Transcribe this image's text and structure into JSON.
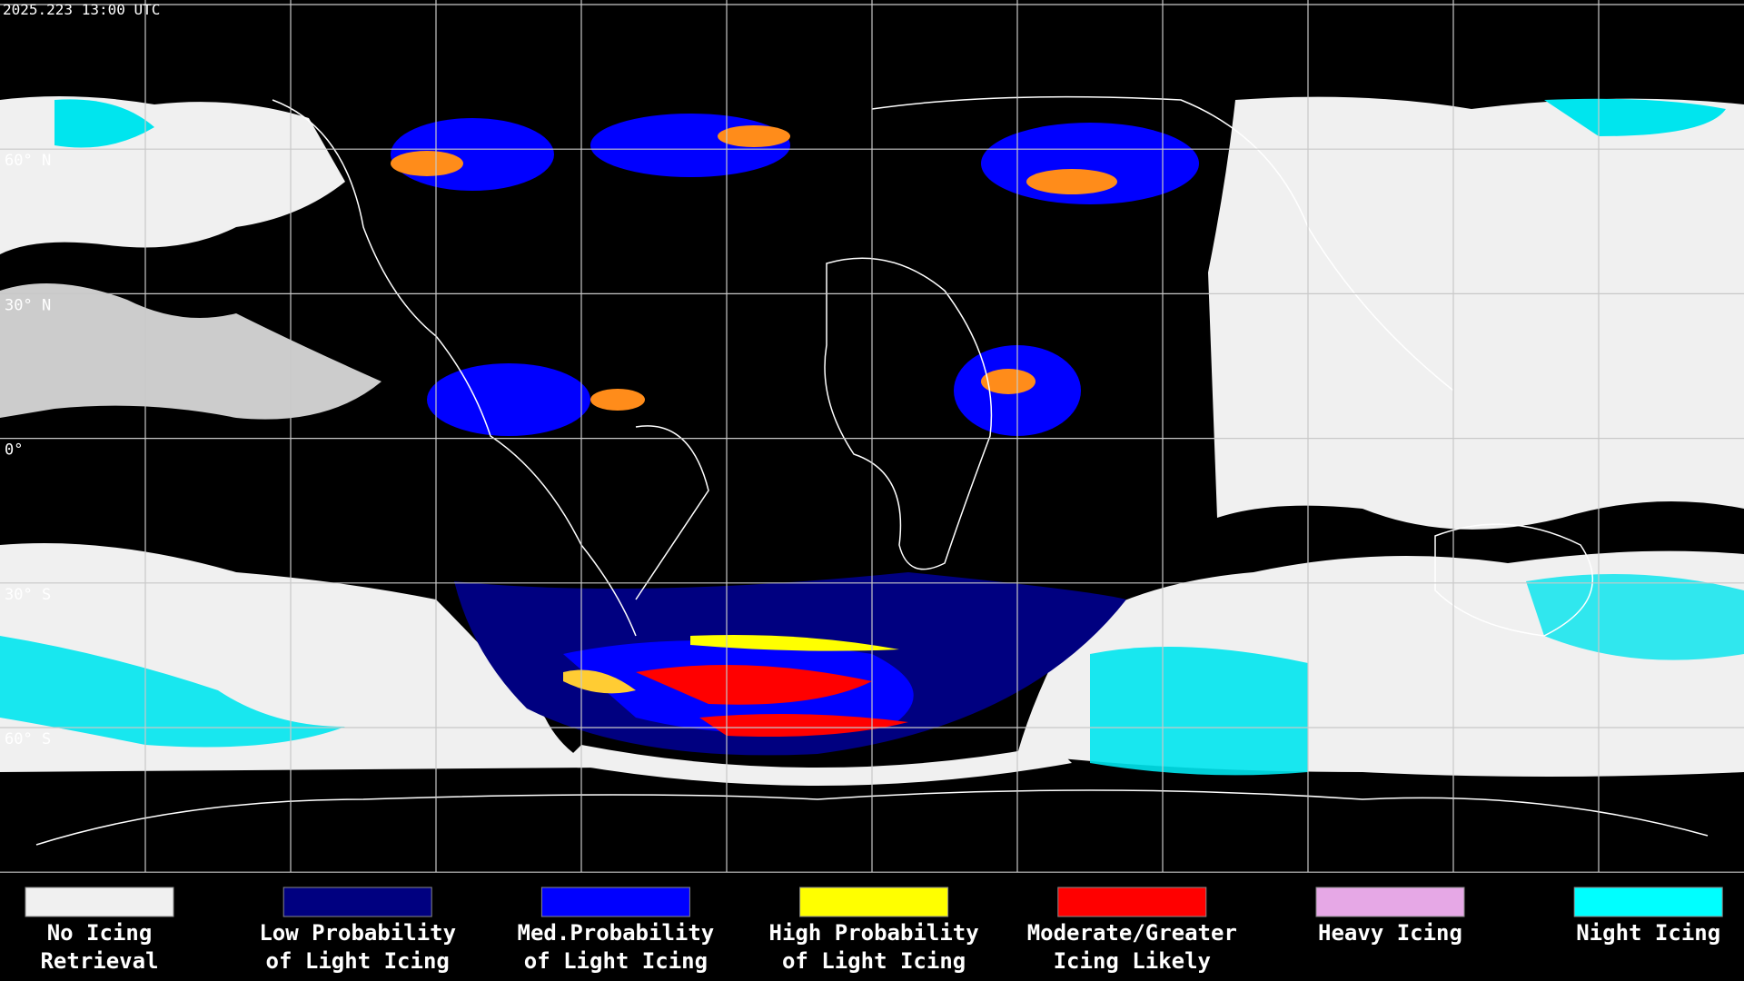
{
  "header": {
    "timestamp": "2025.223 13:00 UTC"
  },
  "map": {
    "latitude_labels": [
      {
        "label": "60° N",
        "row": 1
      },
      {
        "label": "30° N",
        "row": 2
      },
      {
        "label": "0°",
        "row": 3
      },
      {
        "label": "30° S",
        "row": 4
      },
      {
        "label": "60° S",
        "row": 5
      }
    ]
  },
  "legend": {
    "items": [
      {
        "color": "#f0f0f0",
        "lines": [
          "No Icing",
          "Retrieval"
        ]
      },
      {
        "color": "#000080",
        "lines": [
          "Low Probability",
          "of Light Icing"
        ]
      },
      {
        "color": "#0000ff",
        "lines": [
          "Med.Probability",
          "of Light Icing"
        ]
      },
      {
        "color": "#ffff00",
        "lines": [
          "High Probability",
          "of Light Icing"
        ]
      },
      {
        "color": "#ff0000",
        "lines": [
          "Moderate/Greater",
          "Icing Likely"
        ]
      },
      {
        "color": "#e6a8e6",
        "lines": [
          "Heavy Icing"
        ]
      },
      {
        "color": "#00ffff",
        "lines": [
          "Night Icing"
        ]
      }
    ]
  }
}
